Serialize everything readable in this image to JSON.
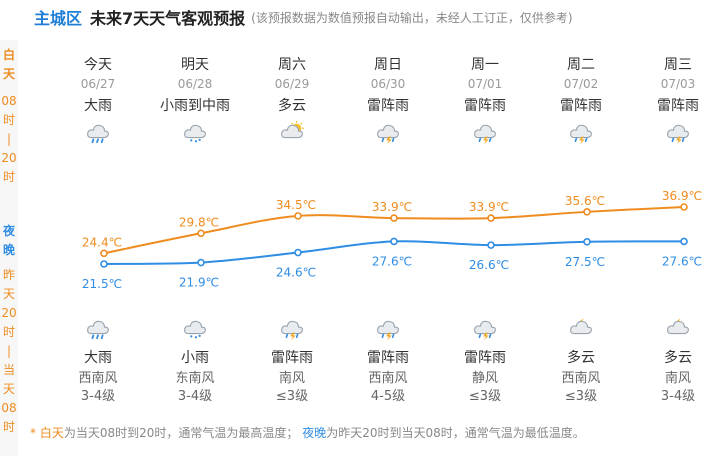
{
  "header": {
    "city": "主城区",
    "title": "未来7天天气客观预报",
    "note": "(该预报数据为数值预报自动输出，未经人工订正，仅供参考)"
  },
  "sidebar": {
    "day_label": [
      "白",
      "天"
    ],
    "day_range": [
      "08",
      "时",
      "|",
      "20",
      "时"
    ],
    "night_label": [
      "夜",
      "晚"
    ],
    "night_range": [
      "昨",
      "天",
      "20",
      "时",
      "|",
      "当",
      "天",
      "08",
      "时"
    ]
  },
  "days": [
    {
      "weekday": "今天",
      "date": "06/27",
      "day_weather": "大雨",
      "day_icon": "rain-icon",
      "night_weather": "大雨",
      "night_icon": "rain-icon",
      "wind_dir": "西南风",
      "wind_level": "3-4级"
    },
    {
      "weekday": "明天",
      "date": "06/28",
      "day_weather": "小雨到中雨",
      "day_icon": "light-rain-icon",
      "night_weather": "小雨",
      "night_icon": "light-rain-icon",
      "wind_dir": "东南风",
      "wind_level": "3-4级"
    },
    {
      "weekday": "周六",
      "date": "06/29",
      "day_weather": "多云",
      "day_icon": "partly-cloudy-icon",
      "night_weather": "雷阵雨",
      "night_icon": "thunderstorm-icon",
      "wind_dir": "南风",
      "wind_level": "≤3级"
    },
    {
      "weekday": "周日",
      "date": "06/30",
      "day_weather": "雷阵雨",
      "day_icon": "thunderstorm-icon",
      "night_weather": "雷阵雨",
      "night_icon": "thunderstorm-icon",
      "wind_dir": "西南风",
      "wind_level": "4-5级"
    },
    {
      "weekday": "周一",
      "date": "07/01",
      "day_weather": "雷阵雨",
      "day_icon": "thunderstorm-icon",
      "night_weather": "雷阵雨",
      "night_icon": "thunderstorm-icon",
      "wind_dir": "静风",
      "wind_level": "≤3级"
    },
    {
      "weekday": "周二",
      "date": "07/02",
      "day_weather": "雷阵雨",
      "day_icon": "thunderstorm-icon",
      "night_weather": "多云",
      "night_icon": "cloudy-night-icon",
      "wind_dir": "西南风",
      "wind_level": "≤3级"
    },
    {
      "weekday": "周三",
      "date": "07/03",
      "day_weather": "雷阵雨",
      "day_icon": "thunderstorm-icon",
      "night_weather": "多云",
      "night_icon": "cloudy-night-icon",
      "wind_dir": "南风",
      "wind_level": "3-4级"
    }
  ],
  "chart_data": {
    "type": "line",
    "categories": [
      "06/27",
      "06/28",
      "06/29",
      "06/30",
      "07/01",
      "07/02",
      "07/03"
    ],
    "series": [
      {
        "values": [
          24.4,
          29.8,
          34.5,
          33.9,
          33.9,
          35.6,
          36.9
        ],
        "labels": [
          "24.4℃",
          "29.8℃",
          "34.5℃",
          "33.9℃",
          "33.9℃",
          "35.6℃",
          "36.9℃"
        ],
        "color": "#ef8c1f"
      },
      {
        "values": [
          21.5,
          21.9,
          24.6,
          27.6,
          26.6,
          27.5,
          27.6
        ],
        "labels": [
          "21.5℃",
          "21.9℃",
          "24.6℃",
          "27.6℃",
          "26.6℃",
          "27.5℃",
          "27.6℃"
        ],
        "color": "#2f8de4"
      }
    ]
  },
  "footer": {
    "star": "* ",
    "day_term": "白天",
    "day_desc": "为当天08时到20时，通常气温为最高温度；",
    "night_term": "夜晚",
    "night_desc": "为昨天20时到当天08时，通常气温为最低温度。"
  },
  "colors": {
    "day": "#ef8c1f",
    "night": "#2f8de4",
    "city": "#1f7fd6"
  }
}
